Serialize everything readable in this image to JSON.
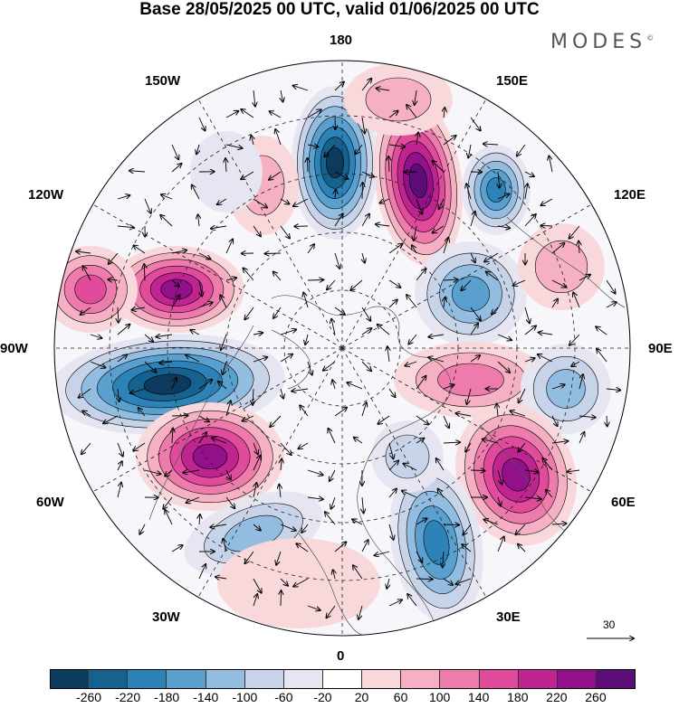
{
  "title": "Base 28/05/2025 00 UTC, valid 01/06/2025 00 UTC",
  "brand": "MODES",
  "brand_mark": "©",
  "longitude_labels": {
    "lon_180": "180",
    "lon_150e": "150E",
    "lon_120e": "120E",
    "lon_90e": "90E",
    "lon_60e": "60E",
    "lon_30e": "30E",
    "lon_0": "0",
    "lon_30w": "30W",
    "lon_60w": "60W",
    "lon_90w": "90W",
    "lon_120w": "120W",
    "lon_150w": "150W"
  },
  "vector_scale": "30",
  "colorbar": {
    "colors": [
      "#0d3b5e",
      "#16628f",
      "#2d82b8",
      "#5aa0cf",
      "#93bde0",
      "#c7d3e8",
      "#e6e6f2",
      "#ffffff",
      "#f9d8dc",
      "#f5b0c3",
      "#ed7bab",
      "#e04b9c",
      "#c02490",
      "#92108a",
      "#5c0d78"
    ],
    "tick_labels": [
      "-260",
      "-220",
      "-180",
      "-140",
      "-100",
      "-60",
      "-20",
      "20",
      "60",
      "100",
      "140",
      "180",
      "220",
      "260"
    ]
  }
}
